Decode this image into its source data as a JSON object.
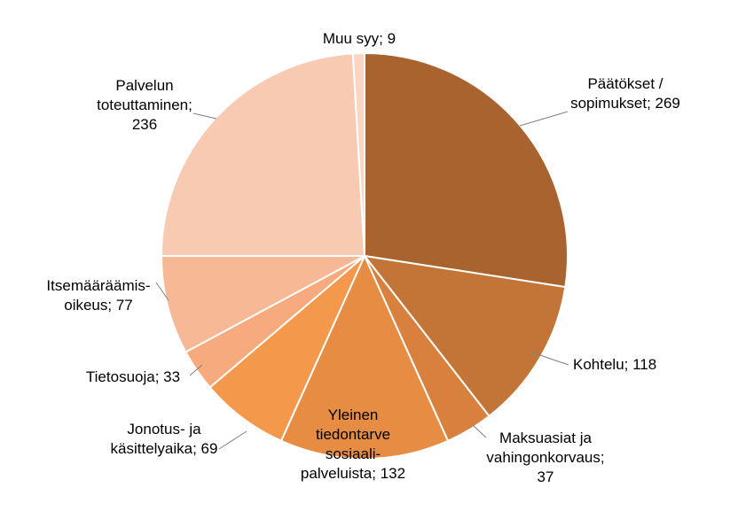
{
  "chart_data": {
    "type": "pie",
    "title": "",
    "slices": [
      {
        "label": "Päätökset / sopimukset",
        "label_lines": [
          "Päätökset /",
          "sopimukset; 269"
        ],
        "value": 269,
        "color": "#A9632E"
      },
      {
        "label": "Kohtelu",
        "label_lines": [
          "Kohtelu; 118"
        ],
        "value": 118,
        "color": "#C27537"
      },
      {
        "label": "Maksuasiat ja vahingonkorvaus",
        "label_lines": [
          "Maksuasiat ja",
          "vahingonkorvaus;",
          "37"
        ],
        "value": 37,
        "color": "#D8813F"
      },
      {
        "label": "Yleinen tiedontarve sosiaali-palveluista",
        "label_lines": [
          "Yleinen",
          "tiedontarve",
          "sosiaali-",
          "palveluista; 132"
        ],
        "value": 132,
        "color": "#E78C43"
      },
      {
        "label": "Jonotus- ja käsittelyaika",
        "label_lines": [
          "Jonotus- ja",
          "käsittelyaika; 69"
        ],
        "value": 69,
        "color": "#F4994B"
      },
      {
        "label": "Tietosuoja",
        "label_lines": [
          "Tietosuoja; 33"
        ],
        "value": 33,
        "color": "#F6AA7D"
      },
      {
        "label": "Itsemääräämis-oikeus",
        "label_lines": [
          "Itsemääräämis-",
          "oikeus; 77"
        ],
        "value": 77,
        "color": "#F7B896"
      },
      {
        "label": "Palvelun toteuttaminen",
        "label_lines": [
          "Palvelun",
          "toteuttaminen;",
          "236"
        ],
        "value": 236,
        "color": "#F8CAB2"
      },
      {
        "label": "Muu syy",
        "label_lines": [
          "Muu syy; 9"
        ],
        "value": 9,
        "color": "#FBD6C3"
      }
    ],
    "start_angle": "12 o'clock",
    "direction": "clockwise",
    "legend": "none"
  }
}
